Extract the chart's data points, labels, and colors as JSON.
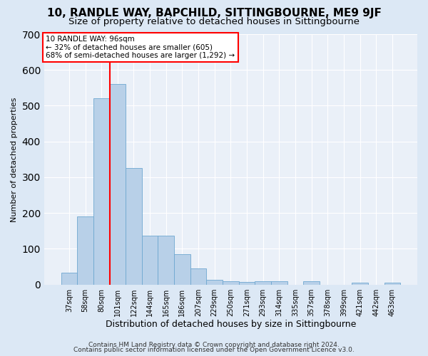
{
  "title1": "10, RANDLE WAY, BAPCHILD, SITTINGBOURNE, ME9 9JF",
  "title2": "Size of property relative to detached houses in Sittingbourne",
  "xlabel": "Distribution of detached houses by size in Sittingbourne",
  "ylabel": "Number of detached properties",
  "categories": [
    "37sqm",
    "58sqm",
    "80sqm",
    "101sqm",
    "122sqm",
    "144sqm",
    "165sqm",
    "186sqm",
    "207sqm",
    "229sqm",
    "250sqm",
    "271sqm",
    "293sqm",
    "314sqm",
    "335sqm",
    "357sqm",
    "378sqm",
    "399sqm",
    "421sqm",
    "442sqm",
    "463sqm"
  ],
  "values": [
    33,
    190,
    520,
    560,
    325,
    137,
    137,
    85,
    46,
    13,
    10,
    8,
    10,
    10,
    0,
    10,
    0,
    0,
    5,
    0,
    6
  ],
  "bar_color": "#b8d0e8",
  "bar_edge_color": "#6ea8d0",
  "vline_color": "red",
  "vline_x_index": 2.5,
  "annotation_text": "10 RANDLE WAY: 96sqm\n← 32% of detached houses are smaller (605)\n68% of semi-detached houses are larger (1,292) →",
  "annotation_box_color": "white",
  "annotation_box_edge": "red",
  "footer1": "Contains HM Land Registry data © Crown copyright and database right 2024.",
  "footer2": "Contains public sector information licensed under the Open Government Licence v3.0.",
  "bg_color": "#dce8f5",
  "plot_bg_color": "#eaf0f8",
  "ylim": [
    0,
    700
  ],
  "title1_fontsize": 11,
  "title2_fontsize": 9.5,
  "xlabel_fontsize": 9,
  "ylabel_fontsize": 8,
  "tick_fontsize": 7,
  "footer_fontsize": 6.5,
  "annot_fontsize": 7.5
}
